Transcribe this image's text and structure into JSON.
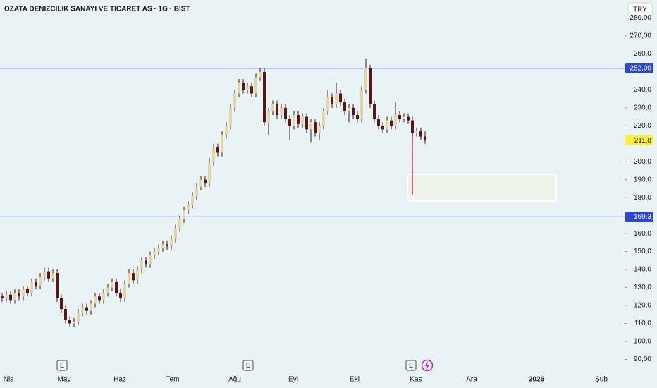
{
  "chart_data": {
    "type": "candlestick",
    "title": "OZATA DENIZCILIK SANAYI VE TICARET AS · 1G · BIST",
    "currency_button": "TRY",
    "x_axis_labels": [
      "Nis",
      "May",
      "Haz",
      "Tem",
      "Ağu",
      "Eyl",
      "Eki",
      "Kas",
      "Ara",
      "2026",
      "Şub"
    ],
    "earnings_labels": [
      "E",
      "E",
      "E"
    ],
    "up_color": "#e3d7a3",
    "down_color": "#5e1414",
    "wick_color": "#3a1a1a",
    "ylim": [
      82.7,
      290
    ],
    "yticks": [
      {
        "value": 90,
        "label": "90,00"
      },
      {
        "value": 100,
        "label": "100,0"
      },
      {
        "value": 110,
        "label": "110,0"
      },
      {
        "value": 120,
        "label": "120,0"
      },
      {
        "value": 130,
        "label": "130,0"
      },
      {
        "value": 140,
        "label": "140,0"
      },
      {
        "value": 150,
        "label": "150,0"
      },
      {
        "value": 160,
        "label": "160,0"
      },
      {
        "value": 180,
        "label": "180,0"
      },
      {
        "value": 190,
        "label": "190,0"
      },
      {
        "value": 200,
        "label": "200,0"
      },
      {
        "value": 220,
        "label": "220,0"
      },
      {
        "value": 230,
        "label": "230,0"
      },
      {
        "value": 240,
        "label": "240,0"
      },
      {
        "value": 260,
        "label": "260,0"
      },
      {
        "value": 270,
        "label": "270,00"
      },
      {
        "value": 280,
        "label": "280,00"
      }
    ],
    "levels": [
      {
        "value": 252,
        "label": "252,00"
      },
      {
        "value": 169.3,
        "label": "169,3"
      }
    ],
    "level_color": "#2f49c9",
    "last_price": {
      "value": 211.8,
      "label": "211,8"
    },
    "box": {
      "top": 193,
      "bottom": 178
    },
    "marker_line": {
      "from": 217,
      "to": 181.7
    },
    "open": [
      125,
      124,
      126,
      123,
      127,
      125,
      129,
      127,
      133,
      131,
      136,
      139,
      135,
      138,
      124,
      118,
      112,
      110,
      111,
      116,
      119,
      117,
      121,
      125,
      123,
      127,
      130,
      133,
      127,
      124,
      132,
      138,
      134,
      140,
      145,
      143,
      148,
      150,
      152,
      154,
      153,
      157,
      163,
      168,
      173,
      176,
      181,
      186,
      190,
      188,
      200,
      208,
      205,
      215,
      220,
      230,
      238,
      244,
      240,
      242,
      238,
      247,
      250,
      222,
      228,
      232,
      226,
      230,
      224,
      220,
      226,
      221,
      225,
      218,
      222,
      216,
      220,
      228,
      236,
      232,
      238,
      233,
      228,
      230,
      226,
      224,
      240,
      252,
      232,
      224,
      220,
      218,
      223,
      220,
      226,
      224,
      225,
      223,
      216,
      217,
      214
    ],
    "high": [
      127,
      128,
      128,
      129,
      129,
      131,
      131,
      135,
      135,
      138,
      141,
      141,
      140,
      140,
      126,
      120,
      114,
      113,
      118,
      121,
      121,
      123,
      127,
      127,
      129,
      132,
      135,
      135,
      129,
      134,
      140,
      140,
      142,
      147,
      147,
      150,
      152,
      154,
      156,
      156,
      159,
      165,
      170,
      175,
      178,
      183,
      188,
      192,
      192,
      202,
      210,
      210,
      217,
      222,
      232,
      240,
      246,
      246,
      244,
      244,
      249,
      252,
      252,
      230,
      234,
      234,
      232,
      232,
      226,
      228,
      228,
      227,
      227,
      224,
      224,
      222,
      230,
      240,
      238,
      244,
      240,
      235,
      232,
      232,
      228,
      242,
      257,
      254,
      234,
      226,
      222,
      225,
      225,
      233,
      228,
      227,
      227,
      225,
      219,
      219,
      217
    ],
    "low": [
      122,
      122,
      121,
      121,
      123,
      123,
      125,
      125,
      129,
      129,
      134,
      133,
      133,
      122,
      116,
      110,
      108,
      108,
      109,
      114,
      115,
      115,
      119,
      121,
      121,
      125,
      128,
      125,
      122,
      122,
      130,
      132,
      132,
      138,
      141,
      141,
      146,
      148,
      150,
      151,
      151,
      155,
      161,
      166,
      171,
      174,
      179,
      184,
      186,
      186,
      198,
      203,
      203,
      213,
      218,
      228,
      236,
      238,
      238,
      236,
      236,
      245,
      220,
      215,
      226,
      224,
      224,
      222,
      212,
      218,
      219,
      219,
      216,
      211,
      214,
      212,
      218,
      226,
      230,
      230,
      231,
      226,
      222,
      224,
      222,
      222,
      238,
      230,
      222,
      218,
      216,
      216,
      218,
      218,
      222,
      222,
      221,
      214,
      214,
      212,
      210
    ],
    "close": [
      124,
      126,
      123,
      127,
      125,
      129,
      127,
      133,
      131,
      136,
      139,
      135,
      138,
      124,
      118,
      112,
      110,
      111,
      116,
      119,
      117,
      121,
      125,
      123,
      127,
      130,
      133,
      127,
      124,
      132,
      138,
      134,
      140,
      145,
      143,
      148,
      150,
      152,
      154,
      153,
      157,
      163,
      168,
      173,
      176,
      181,
      186,
      190,
      188,
      200,
      208,
      205,
      215,
      220,
      230,
      238,
      244,
      240,
      242,
      238,
      247,
      250,
      222,
      228,
      232,
      226,
      230,
      224,
      220,
      226,
      221,
      225,
      218,
      222,
      216,
      220,
      228,
      236,
      232,
      238,
      233,
      228,
      230,
      226,
      224,
      240,
      252,
      232,
      224,
      220,
      218,
      223,
      220,
      226,
      224,
      225,
      223,
      216,
      217,
      214,
      211.8
    ]
  }
}
